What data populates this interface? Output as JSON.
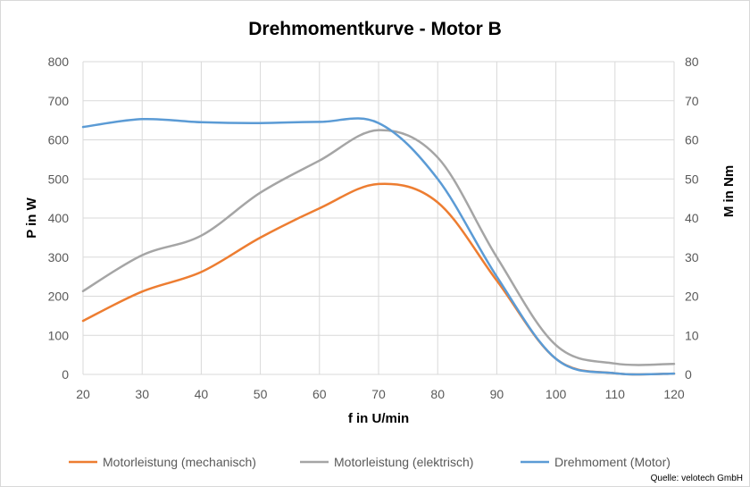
{
  "chart_data": {
    "type": "line",
    "title": "Drehmomentkurve - Motor B",
    "xlabel": "f in U/min",
    "ylabel_left": "P in W",
    "ylabel_right": "M in Nm",
    "xlim": [
      20,
      120
    ],
    "ylim_left": [
      0,
      800
    ],
    "ylim_right": [
      0,
      80
    ],
    "x_ticks": [
      "20",
      "30",
      "40",
      "50",
      "60",
      "70",
      "80",
      "90",
      "100",
      "110",
      "120"
    ],
    "y_ticks_left": [
      "0",
      "100",
      "200",
      "300",
      "400",
      "500",
      "600",
      "700",
      "800"
    ],
    "y_ticks_right": [
      "0",
      "10",
      "20",
      "30",
      "40",
      "50",
      "60",
      "70",
      "80"
    ],
    "grid": true,
    "legend_position": "bottom",
    "x": [
      20,
      30,
      40,
      50,
      60,
      70,
      80,
      90,
      100,
      110,
      120
    ],
    "series": [
      {
        "name": "Motorleistung (mechanisch)",
        "axis": "left",
        "color": "#ed7d31",
        "values": [
          137,
          212,
          262,
          350,
          425,
          487,
          440,
          240,
          40,
          3,
          2
        ]
      },
      {
        "name": "Motorleistung (elektrisch)",
        "axis": "left",
        "color": "#a5a5a5",
        "values": [
          213,
          305,
          355,
          465,
          547,
          625,
          555,
          300,
          75,
          28,
          27
        ]
      },
      {
        "name": "Drehmoment (Motor)",
        "axis": "right",
        "color": "#5b9bd5",
        "values": [
          63.3,
          65.3,
          64.5,
          64.3,
          64.6,
          64.3,
          50,
          25,
          4,
          0.3,
          0.2
        ]
      }
    ],
    "source": "Quelle: velotech GmbH"
  }
}
